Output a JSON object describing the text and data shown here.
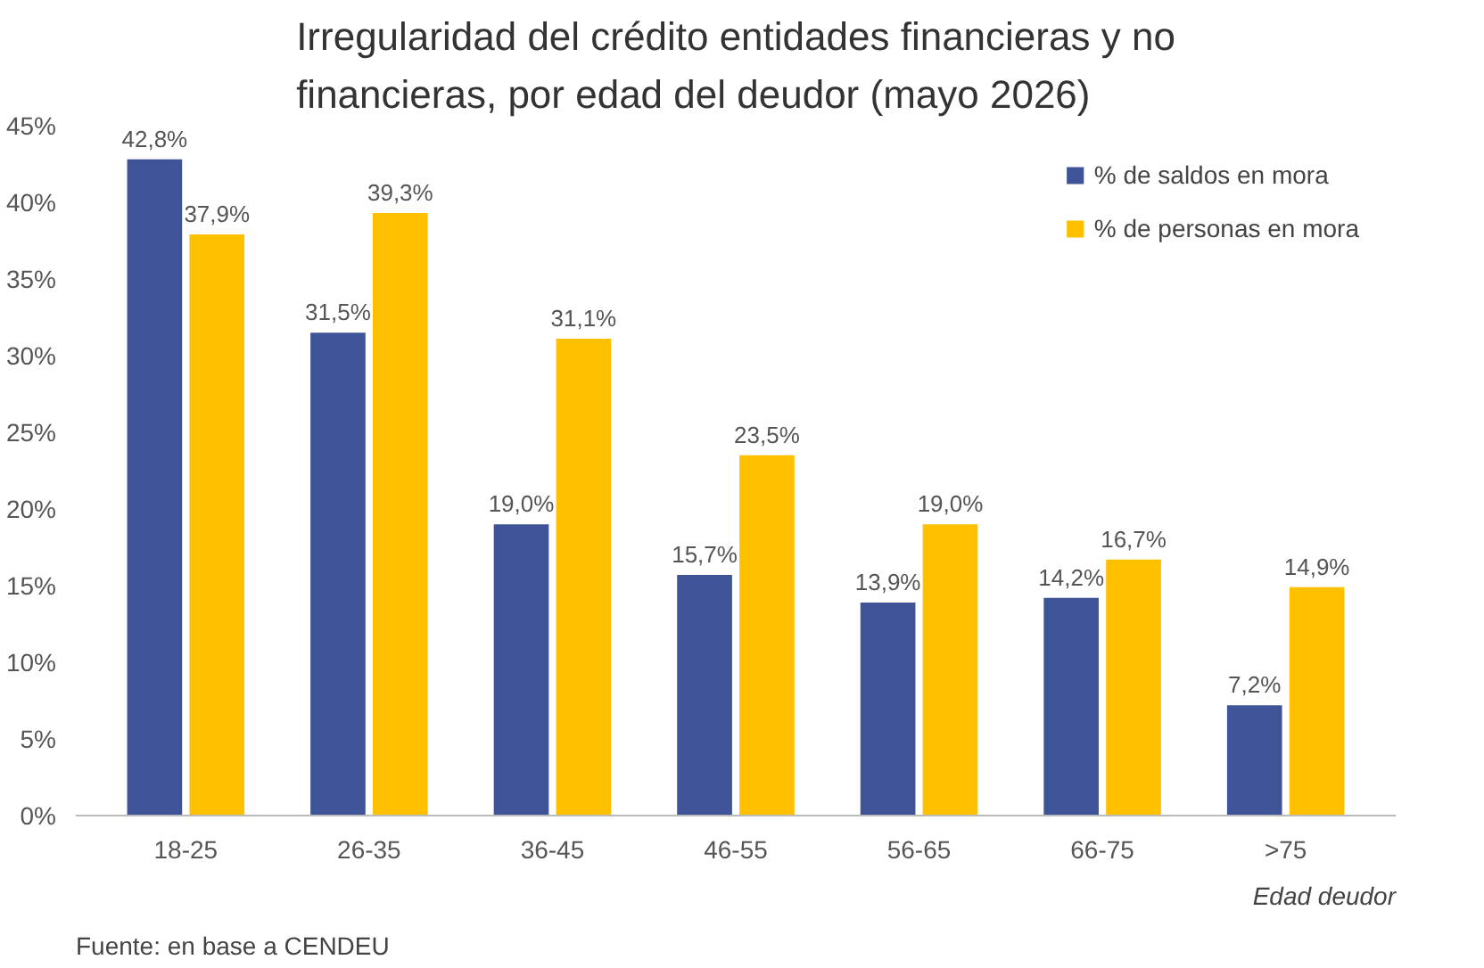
{
  "chart_data": {
    "type": "bar",
    "title": "Irregularidad del crédito entidades financieras y no financieras, por edad del deudor (mayo 2026)",
    "categories": [
      "18-25",
      "26-35",
      "36-45",
      "46-55",
      "56-65",
      "66-75",
      ">75"
    ],
    "series": [
      {
        "name": "% de saldos en mora",
        "color": "#3f5497",
        "values": [
          42.8,
          31.5,
          19.0,
          15.7,
          13.9,
          14.2,
          7.2
        ],
        "value_labels": [
          "42,8%",
          "31,5%",
          "19,0%",
          "15,7%",
          "13,9%",
          "14,2%",
          "7,2%"
        ]
      },
      {
        "name": "% de personas en mora",
        "color": "#ffc000",
        "values": [
          37.9,
          39.3,
          31.1,
          23.5,
          19.0,
          16.7,
          14.9
        ],
        "value_labels": [
          "37,9%",
          "39,3%",
          "31,1%",
          "23,5%",
          "19,0%",
          "16,7%",
          "14,9%"
        ]
      }
    ],
    "xlabel": "Edad deudor",
    "ylim": [
      0,
      45
    ],
    "yticks": [
      {
        "value": 0,
        "label": "0%"
      },
      {
        "value": 5,
        "label": "5%"
      },
      {
        "value": 10,
        "label": "10%"
      },
      {
        "value": 15,
        "label": "15%"
      },
      {
        "value": 20,
        "label": "20%"
      },
      {
        "value": 25,
        "label": "25%"
      },
      {
        "value": 30,
        "label": "30%"
      },
      {
        "value": 35,
        "label": "35%"
      },
      {
        "value": 40,
        "label": "40%"
      },
      {
        "value": 45,
        "label": "45%"
      }
    ],
    "annotations": [
      "Fuente: en base a CENDEU"
    ],
    "grid": false,
    "legend": "top right"
  }
}
